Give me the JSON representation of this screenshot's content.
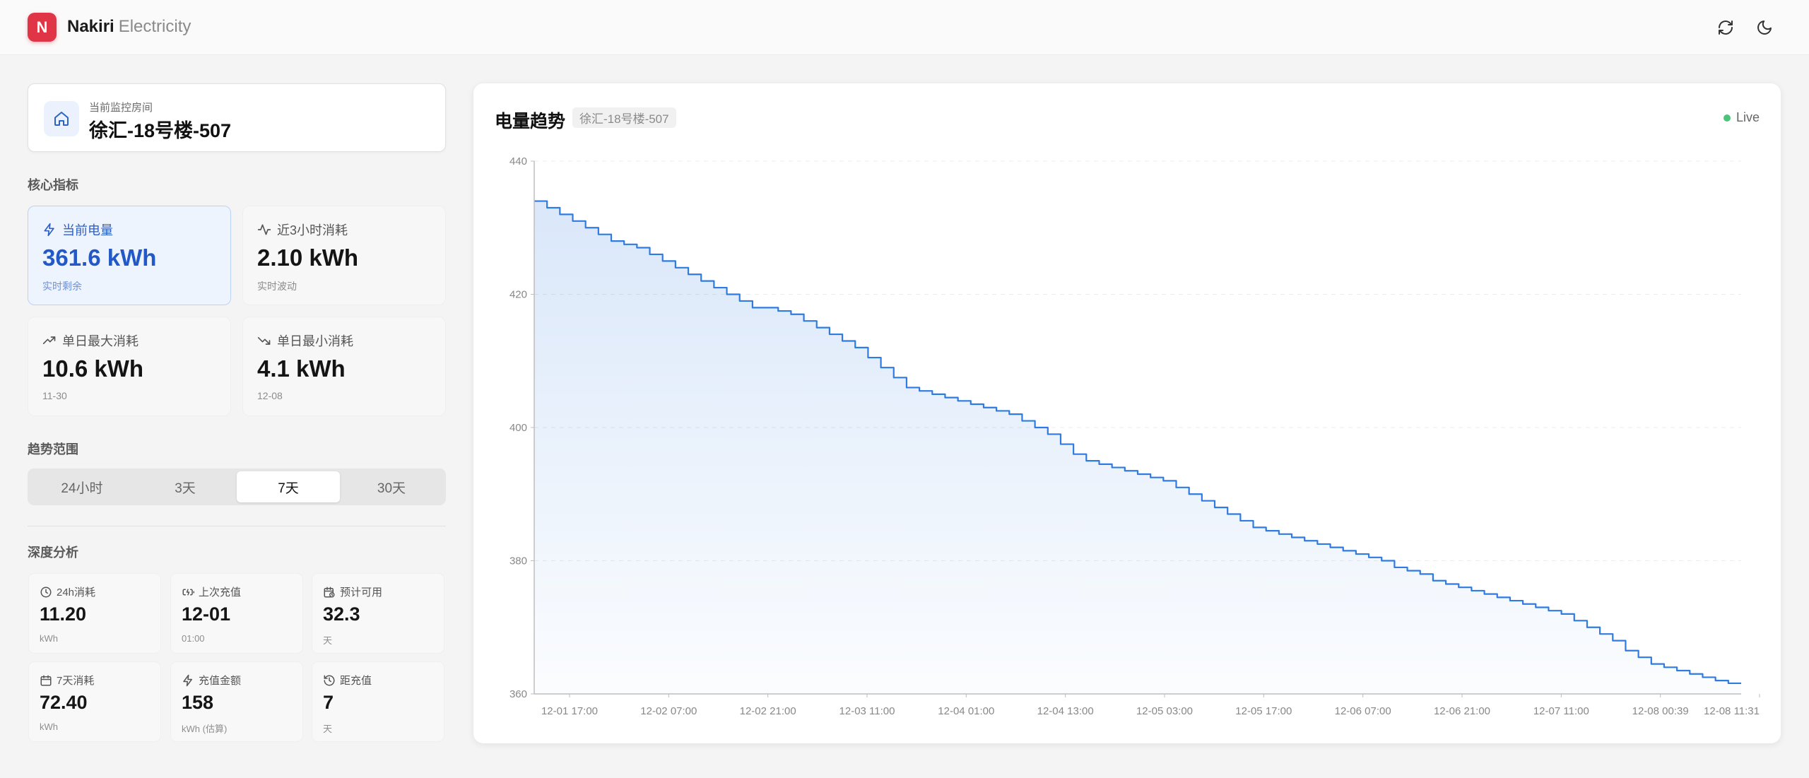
{
  "header": {
    "logo_letter": "N",
    "brand_name": "Nakiri",
    "brand_suffix": "Electricity",
    "refresh_icon": "refresh-icon",
    "theme_icon": "moon-icon"
  },
  "room": {
    "label": "当前监控房间",
    "name": "徐汇-18号楼-507",
    "icon": "home-icon"
  },
  "core": {
    "title": "核心指标",
    "cards": [
      {
        "label": "当前电量",
        "value": "361.6 kWh",
        "sub": "实时剩余",
        "icon": "bolt-icon"
      },
      {
        "label": "近3小时消耗",
        "value": "2.10 kWh",
        "sub": "实时波动",
        "icon": "activity-icon"
      },
      {
        "label": "单日最大消耗",
        "value": "10.6 kWh",
        "sub": "11-30",
        "icon": "trending-up-icon"
      },
      {
        "label": "单日最小消耗",
        "value": "4.1 kWh",
        "sub": "12-08",
        "icon": "trending-down-icon"
      }
    ]
  },
  "range": {
    "title": "趋势范围",
    "options": [
      "24小时",
      "3天",
      "7天",
      "30天"
    ],
    "selected": "7天"
  },
  "analysis": {
    "title": "深度分析",
    "cards": [
      {
        "label": "24h消耗",
        "value": "11.20",
        "sub": "kWh",
        "icon": "clock-icon"
      },
      {
        "label": "上次充值",
        "value": "12-01",
        "sub": "01:00",
        "icon": "charging-icon"
      },
      {
        "label": "预计可用",
        "value": "32.3",
        "sub": "天",
        "icon": "calendar-clock-icon"
      },
      {
        "label": "7天消耗",
        "value": "72.40",
        "sub": "kWh",
        "icon": "calendar-icon"
      },
      {
        "label": "充值金额",
        "value": "158",
        "sub": "kWh (估算)",
        "icon": "bolt-icon"
      },
      {
        "label": "距充值",
        "value": "7",
        "sub": "天",
        "icon": "history-icon"
      }
    ]
  },
  "chart": {
    "title": "电量趋势",
    "tag": "徐汇-18号楼-507",
    "live_label": "Live"
  },
  "colors": {
    "accent": "#2f7be0",
    "brand": "#e03546",
    "live": "#4bc37a"
  },
  "chart_data": {
    "type": "area",
    "title": "电量趋势",
    "xlabel": "",
    "ylabel": "",
    "ylim": [
      360,
      440
    ],
    "yticks": [
      360,
      380,
      400,
      420,
      440
    ],
    "grid": true,
    "series": [
      {
        "values": [
          434.0,
          433.0,
          432.0,
          431.0,
          430.0,
          429.0,
          428.0,
          427.5,
          427.0,
          426.0,
          425.0,
          424.0,
          423.0,
          422.0,
          421.0,
          420.0,
          419.0,
          418.0,
          418.0,
          417.5,
          417.0,
          416.0,
          415.0,
          414.0,
          413.0,
          412.0,
          410.5,
          409.0,
          407.5,
          406.0,
          405.5,
          405.0,
          404.5,
          404.0,
          403.5,
          403.0,
          402.5,
          402.0,
          401.0,
          400.0,
          399.0,
          397.5,
          396.0,
          395.0,
          394.5,
          394.0,
          393.5,
          393.0,
          392.5,
          392.0,
          391.0,
          390.0,
          389.0,
          388.0,
          387.0,
          386.0,
          385.0,
          384.5,
          384.0,
          383.5,
          383.0,
          382.5,
          382.0,
          381.5,
          381.0,
          380.5,
          380.0,
          379.0,
          378.5,
          378.0,
          377.0,
          376.5,
          376.0,
          375.5,
          375.0,
          374.5,
          374.0,
          373.5,
          373.0,
          372.5,
          372.0,
          371.0,
          370.0,
          369.0,
          368.0,
          366.5,
          365.5,
          364.5,
          364.0,
          363.5,
          363.0,
          362.5,
          362.0,
          361.6,
          361.6
        ]
      }
    ],
    "x_tick_labels": [
      "12-01 17:00",
      "12-02 07:00",
      "12-02 21:00",
      "12-03 11:00",
      "12-04 01:00",
      "12-04 13:00",
      "12-05 03:00",
      "12-05 17:00",
      "12-06 07:00",
      "12-06 21:00",
      "12-07 11:00",
      "12-08 00:39",
      "12-08 11:31"
    ]
  }
}
